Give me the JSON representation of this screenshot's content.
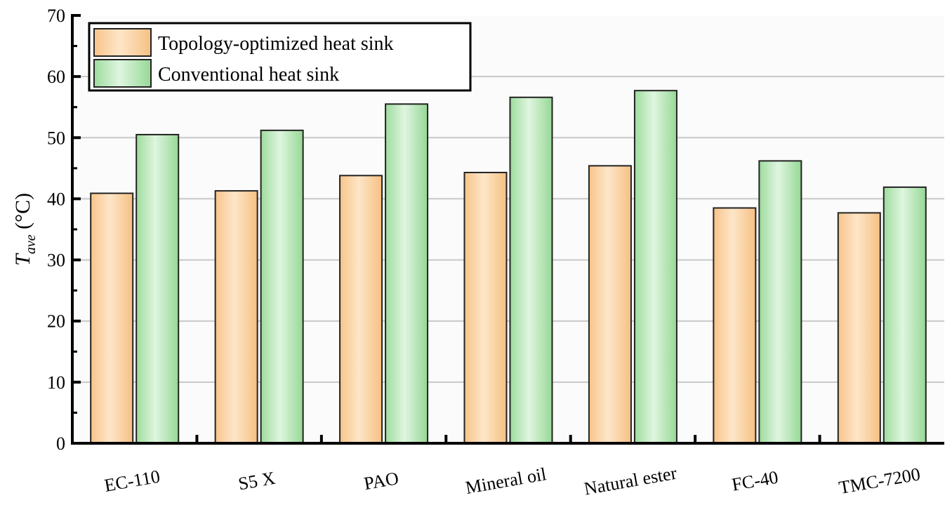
{
  "chart_data": {
    "type": "bar",
    "title": "",
    "xlabel": "",
    "ylabel": "T",
    "ylabel_sub": "ave",
    "ylabel_unit": " (°C)",
    "ylim": [
      0,
      70
    ],
    "yticks": [
      0,
      10,
      20,
      30,
      40,
      50,
      60,
      70
    ],
    "grid": true,
    "legend_position": "top-left",
    "categories": [
      "EC-110",
      "S5 X",
      "PAO",
      "Mineral oil",
      "Natural ester",
      "FC-40",
      "TMC-7200"
    ],
    "series": [
      {
        "name": "Topology-optimized heat sink",
        "color": "#f9cc98",
        "values": [
          40.9,
          41.3,
          43.8,
          44.3,
          45.4,
          38.5,
          37.7
        ]
      },
      {
        "name": "Conventional heat sink",
        "color": "#a8e0a8",
        "values": [
          50.5,
          51.2,
          55.5,
          56.6,
          57.7,
          46.2,
          41.9
        ]
      }
    ]
  }
}
